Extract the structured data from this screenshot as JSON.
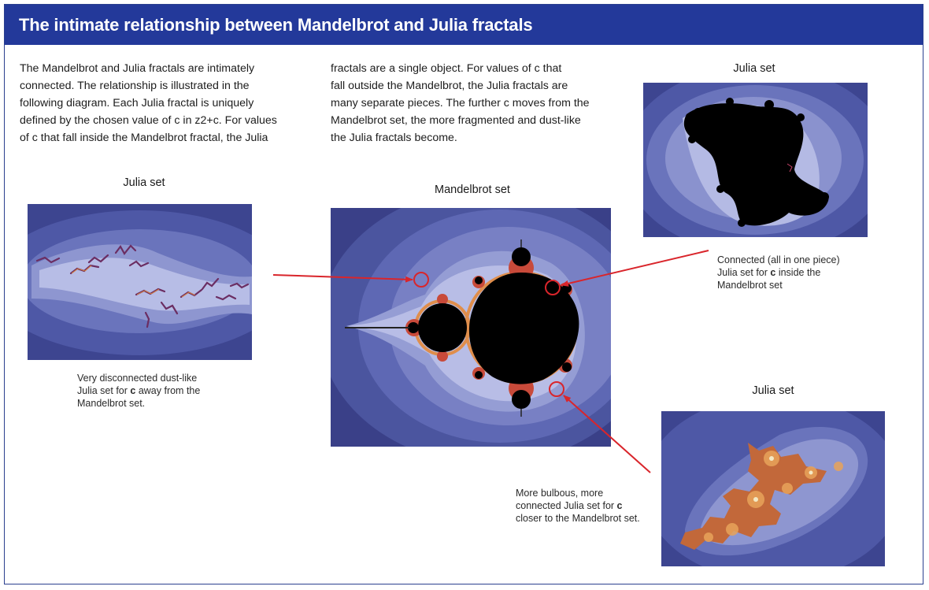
{
  "header": {
    "title": "The intimate relationship between Mandelbrot and Julia fractals"
  },
  "intro": {
    "col1": "The Mandelbrot and Julia fractals are intimately\nconnected. The relationship is illustrated in the\nfollowing diagram. Each Julia fractal is uniquely\ndefined by the chosen value of c in z2+c. For values\nof c that fall inside the Mandelbrot fractal, the Julia",
    "col2": "fractals are a single object. For values of c that\nfall outside the Mandelbrot, the Julia fractals are\nmany separate pieces. The further c moves from the\nMandelbrot set, the more fragmented and dust-like\nthe Julia fractals become."
  },
  "labels": {
    "julia_left": "Julia set",
    "mandelbrot": "Mandelbrot set",
    "julia_top_right": "Julia set",
    "julia_bottom_right": "Julia set"
  },
  "captions": {
    "left": {
      "pre": "Very disconnected dust-like\nJulia set for ",
      "c": "c",
      "post": " away from the\nMandelbrot set."
    },
    "top_right": {
      "pre": "Connected (all in one piece)\nJulia set for ",
      "c": "c",
      "post": " inside the\nMandelbrot set"
    },
    "bottom": {
      "pre": "More bulbous, more\nconnected Julia set for ",
      "c": "c",
      "post": "\ncloser to the Mandelbrot set."
    }
  },
  "colors": {
    "header_bg": "#23399a",
    "arrow": "#d9252b",
    "fractal_dark": "#3a4088",
    "fractal_mid": "#5e68b4",
    "fractal_light": "#a9b0de",
    "fractal_glow": "#e48a3c"
  }
}
